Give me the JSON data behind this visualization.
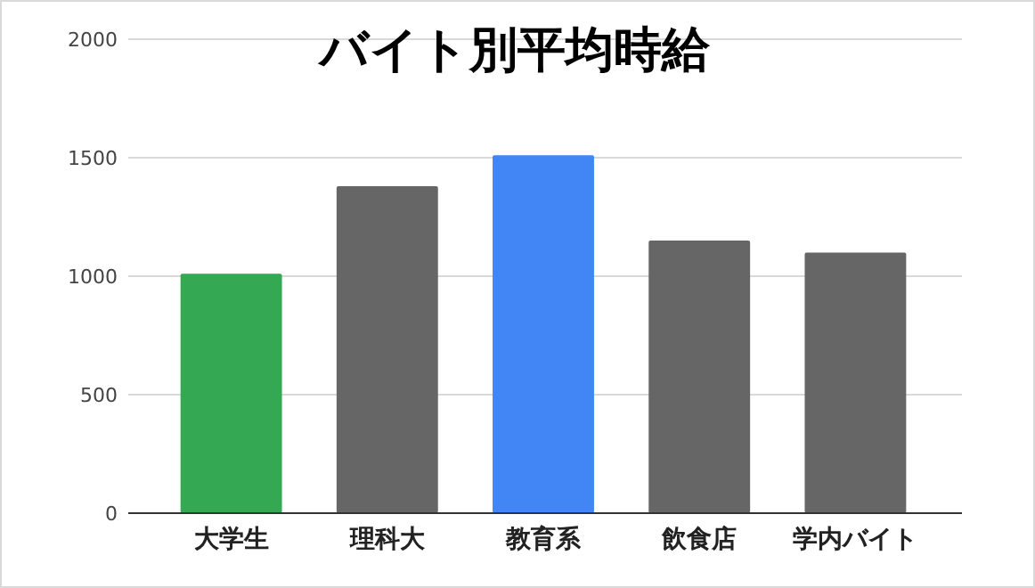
{
  "chart_data": {
    "type": "bar",
    "title": "バイト別平均時給",
    "categories": [
      "大学生",
      "理科大",
      "教育系",
      "飲食店",
      "学内バイト"
    ],
    "values": [
      1010,
      1380,
      1510,
      1150,
      1100
    ],
    "colors": [
      "#34a853",
      "#666666",
      "#4285f4",
      "#666666",
      "#666666"
    ],
    "ylim": [
      0,
      2000
    ],
    "yticks": [
      0,
      500,
      1000,
      1500,
      2000
    ],
    "grid": "y"
  }
}
